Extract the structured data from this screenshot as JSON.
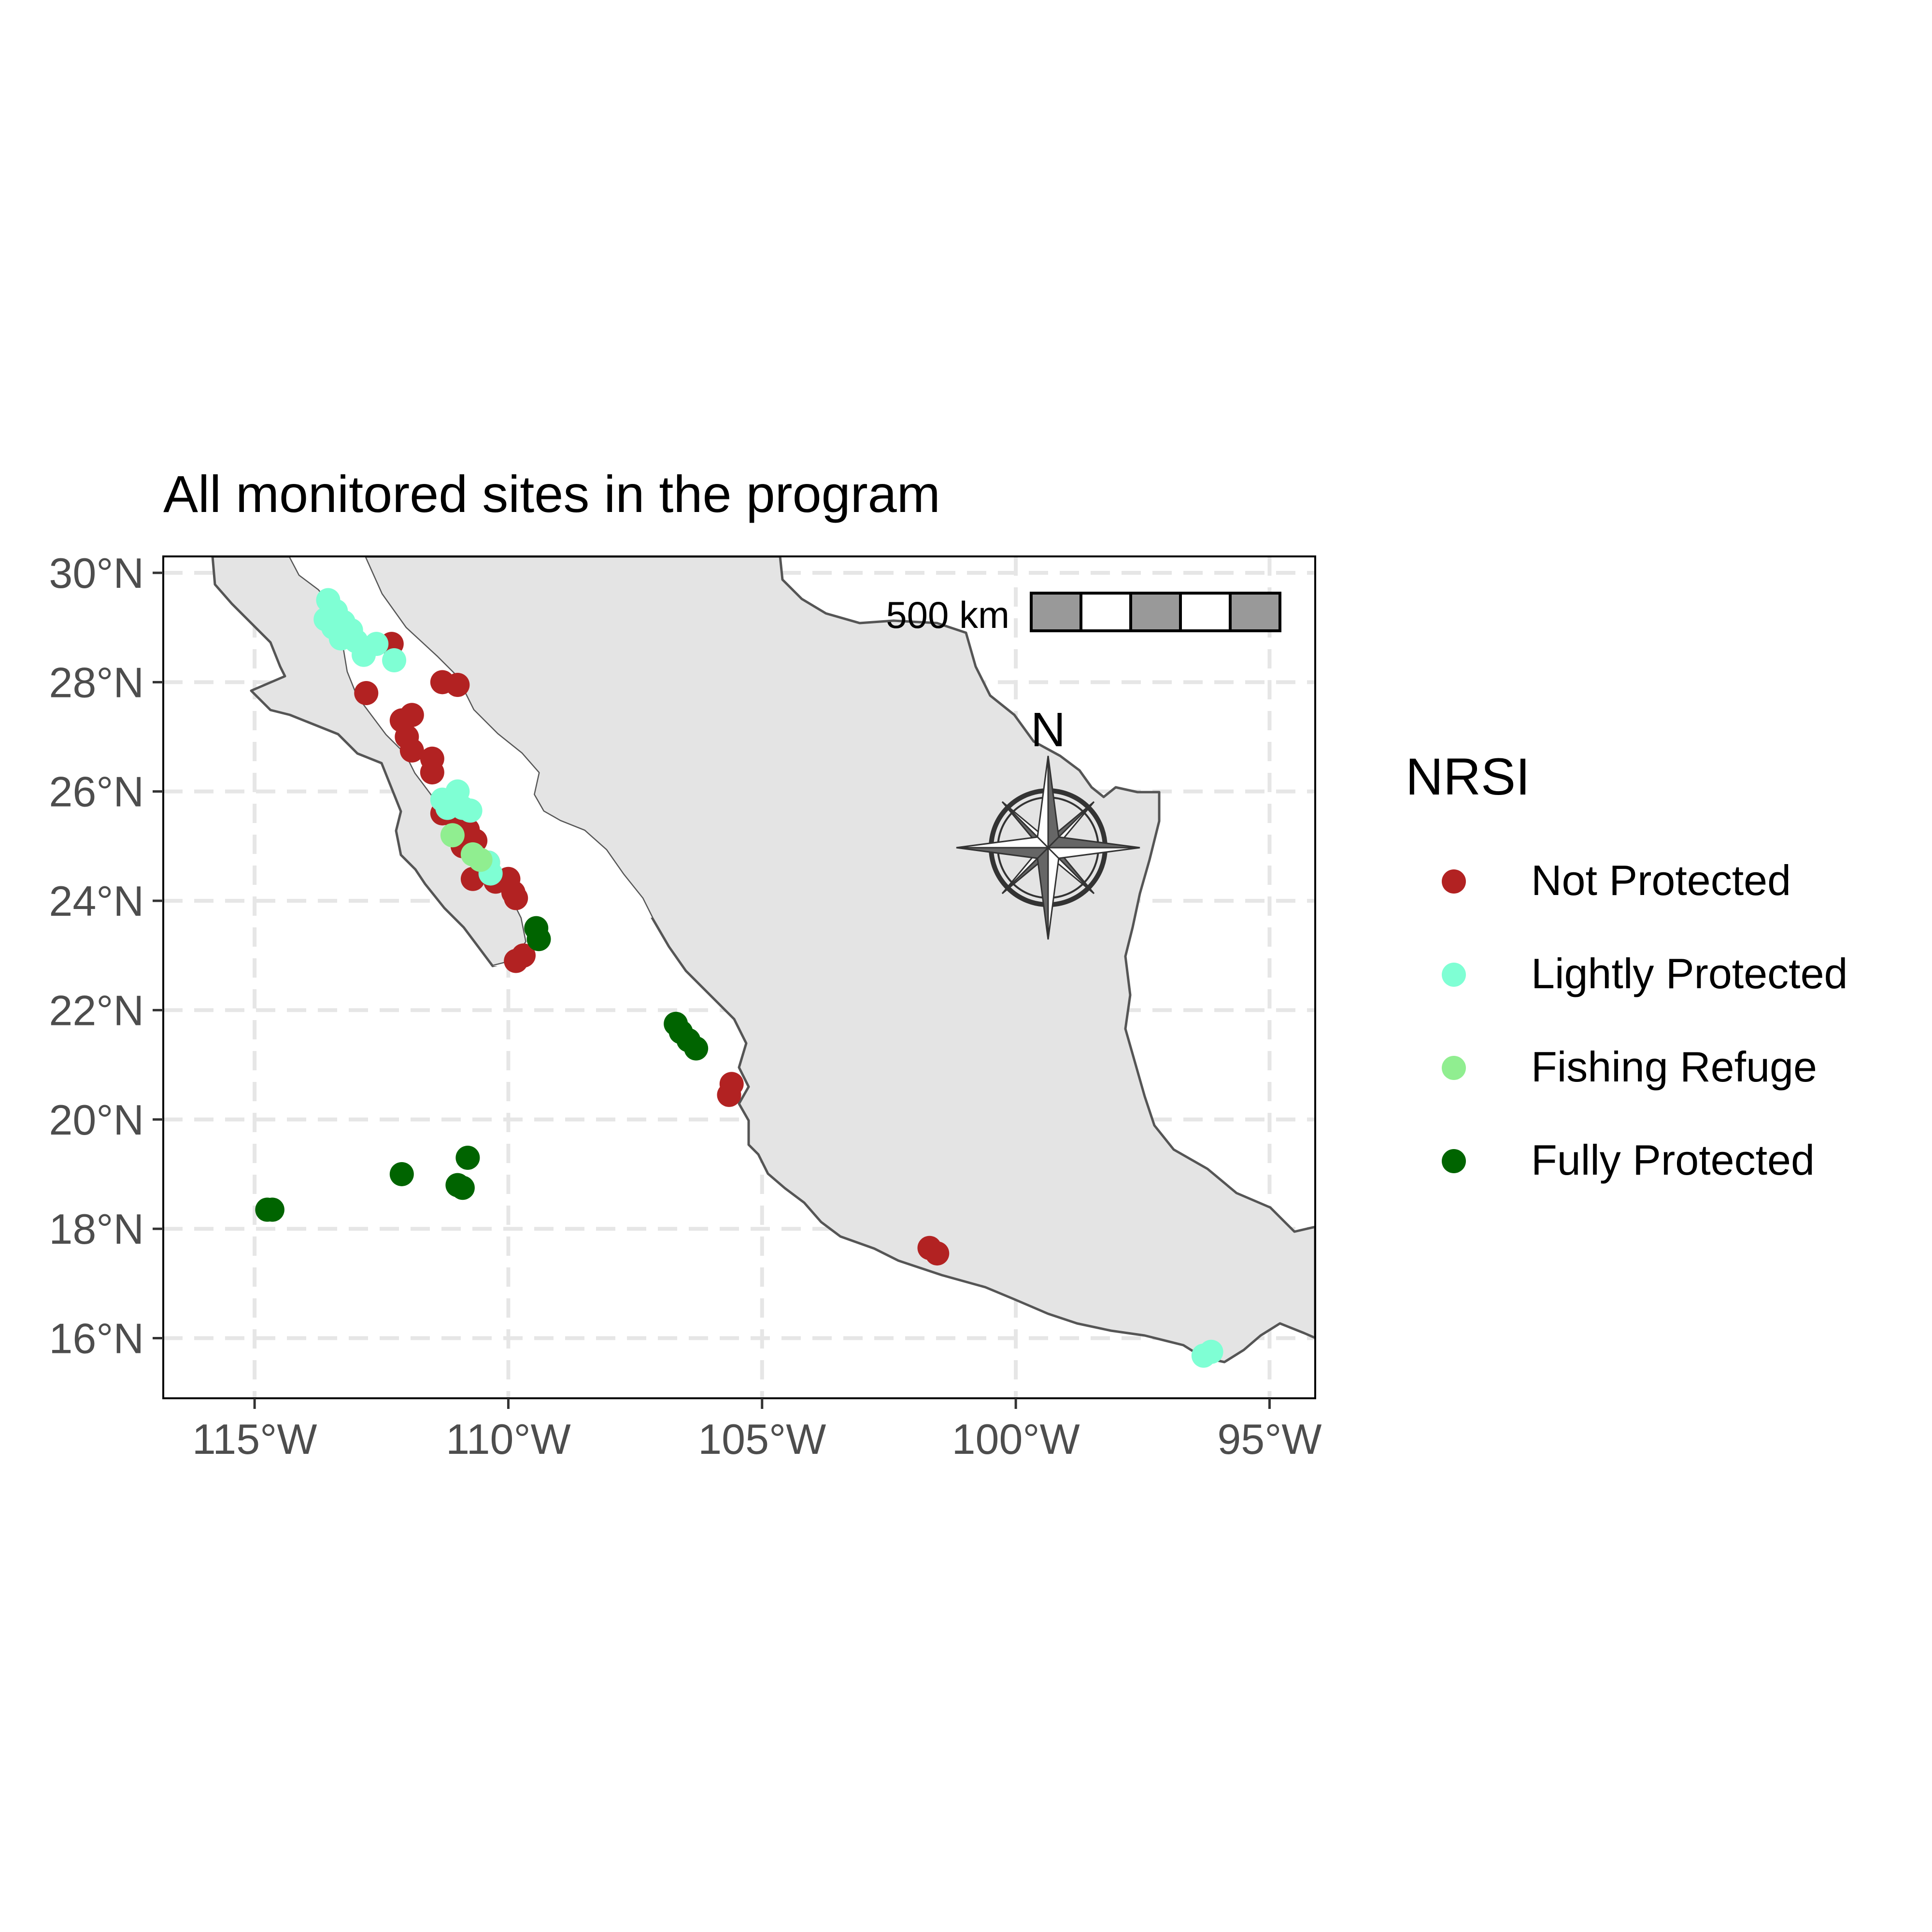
{
  "title": "All monitored sites in the program",
  "legend": {
    "title": "NRSI",
    "items": [
      {
        "label": "Not Protected",
        "color": "#B22222"
      },
      {
        "label": "Lightly Protected",
        "color": "#7FFFD4"
      },
      {
        "label": "Fishing Refuge",
        "color": "#90EE90"
      },
      {
        "label": "Fully Protected",
        "color": "#006400"
      }
    ]
  },
  "scale_bar": {
    "label": "500 km"
  },
  "north_arrow": {
    "label": "N"
  },
  "colors": {
    "land": "#e4e4e4",
    "coast": "#555555",
    "grid": "#e6e6e6",
    "axis_text": "#4d4d4d"
  },
  "chart_data": {
    "type": "scatter",
    "title": "All monitored sites in the program",
    "xlabel": "",
    "ylabel": "",
    "xlim": [
      -116.8,
      -94.1
    ],
    "ylim": [
      14.9,
      30.3
    ],
    "x_ticks": [
      {
        "value": -115,
        "label": "115°W"
      },
      {
        "value": -110,
        "label": "110°W"
      },
      {
        "value": -105,
        "label": "105°W"
      },
      {
        "value": -100,
        "label": "100°W"
      },
      {
        "value": -95,
        "label": "95°W"
      }
    ],
    "y_ticks": [
      {
        "value": 30,
        "label": "30°N"
      },
      {
        "value": 28,
        "label": "28°N"
      },
      {
        "value": 26,
        "label": "26°N"
      },
      {
        "value": 24,
        "label": "24°N"
      },
      {
        "value": 22,
        "label": "22°N"
      },
      {
        "value": 20,
        "label": "20°N"
      },
      {
        "value": 18,
        "label": "18°N"
      },
      {
        "value": 16,
        "label": "16°N"
      }
    ],
    "grid": true,
    "series": [
      {
        "name": "Not Protected",
        "color": "#B22222",
        "points": [
          [
            -112.3,
            28.7
          ],
          [
            -112.8,
            27.8
          ],
          [
            -111.3,
            28.0
          ],
          [
            -111.0,
            27.95
          ],
          [
            -112.1,
            27.3
          ],
          [
            -111.9,
            27.4
          ],
          [
            -112.0,
            27.0
          ],
          [
            -111.9,
            26.75
          ],
          [
            -111.5,
            26.6
          ],
          [
            -111.5,
            26.35
          ],
          [
            -111.3,
            25.6
          ],
          [
            -111.0,
            25.4
          ],
          [
            -110.8,
            25.3
          ],
          [
            -110.9,
            25.0
          ],
          [
            -110.65,
            25.1
          ],
          [
            -110.7,
            24.4
          ],
          [
            -110.4,
            24.7
          ],
          [
            -110.25,
            24.35
          ],
          [
            -110.0,
            24.4
          ],
          [
            -109.85,
            24.05
          ],
          [
            -109.9,
            24.15
          ],
          [
            -109.85,
            22.9
          ],
          [
            -109.7,
            23.0
          ],
          [
            -105.6,
            20.65
          ],
          [
            -105.65,
            20.45
          ],
          [
            -101.7,
            17.65
          ],
          [
            -101.55,
            17.55
          ]
        ]
      },
      {
        "name": "Lightly Protected",
        "color": "#7FFFD4",
        "points": [
          [
            -113.55,
            29.5
          ],
          [
            -113.4,
            29.3
          ],
          [
            -113.6,
            29.15
          ],
          [
            -113.25,
            29.1
          ],
          [
            -113.45,
            29.0
          ],
          [
            -113.1,
            28.95
          ],
          [
            -113.3,
            28.8
          ],
          [
            -113.0,
            28.75
          ],
          [
            -112.85,
            28.5
          ],
          [
            -112.6,
            28.7
          ],
          [
            -112.25,
            28.4
          ],
          [
            -111.0,
            26.0
          ],
          [
            -111.3,
            25.85
          ],
          [
            -111.1,
            25.8
          ],
          [
            -110.9,
            25.7
          ],
          [
            -110.75,
            25.65
          ],
          [
            -111.2,
            25.7
          ],
          [
            -110.4,
            24.7
          ],
          [
            -110.35,
            24.5
          ],
          [
            -96.3,
            15.68
          ],
          [
            -96.15,
            15.75
          ]
        ]
      },
      {
        "name": "Fishing Refuge",
        "color": "#90EE90",
        "points": [
          [
            -111.1,
            25.2
          ],
          [
            -110.7,
            24.85
          ],
          [
            -110.55,
            24.75
          ]
        ]
      },
      {
        "name": "Fully Protected",
        "color": "#006400",
        "points": [
          [
            -109.45,
            23.5
          ],
          [
            -109.4,
            23.3
          ],
          [
            -106.7,
            21.75
          ],
          [
            -106.6,
            21.6
          ],
          [
            -106.45,
            21.45
          ],
          [
            -106.3,
            21.3
          ],
          [
            -114.75,
            18.35
          ],
          [
            -114.65,
            18.35
          ],
          [
            -112.1,
            19.0
          ],
          [
            -110.8,
            19.3
          ],
          [
            -111.0,
            18.8
          ],
          [
            -110.9,
            18.75
          ]
        ]
      }
    ]
  }
}
